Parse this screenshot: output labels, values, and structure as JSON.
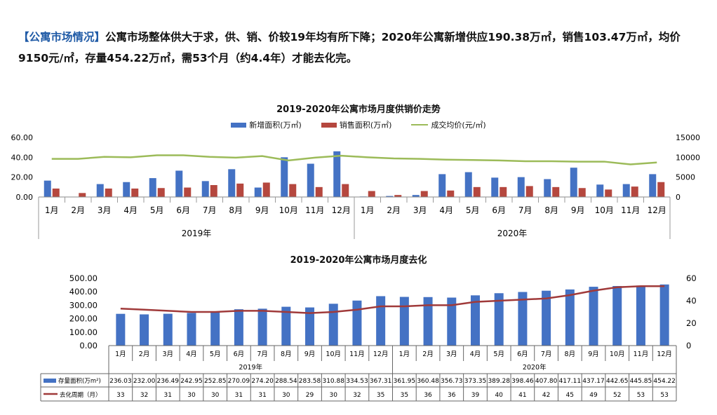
{
  "headline": {
    "tag": "【公寓市场情况】",
    "body": "公寓市场整体供大于求，供、销、价较19年均有所下降；2020年公寓新增供应190.38万㎡，销售103.47万㎡，均价9150元/㎡，存量454.22万㎡，需53个月（约4.4年）才能去化完。"
  },
  "colors": {
    "blue": "#4472c4",
    "red": "#b5473e",
    "green": "#9cbb59",
    "dark_red": "#a03a3a"
  },
  "chart_data": [
    {
      "type": "bar",
      "title": "2019-2020年公寓市场月度供销价走势",
      "categories": [
        "1月",
        "2月",
        "3月",
        "4月",
        "5月",
        "6月",
        "7月",
        "8月",
        "9月",
        "10月",
        "11月",
        "12月",
        "1月",
        "2月",
        "3月",
        "4月",
        "5月",
        "6月",
        "7月",
        "8月",
        "9月",
        "10月",
        "11月",
        "12月"
      ],
      "groups": [
        "2019年",
        "2020年"
      ],
      "y_left_ticks": [
        "0.00",
        "20.00",
        "40.00",
        "60.00"
      ],
      "y_left_lim": [
        0,
        60
      ],
      "y_right_ticks": [
        "0",
        "5000",
        "10000",
        "15000"
      ],
      "y_right_lim": [
        0,
        15000
      ],
      "legend_position": "top-center",
      "series": [
        {
          "name": "新增面积(万㎡)",
          "axis": "left",
          "values": [
            16.5,
            0.3,
            13,
            15,
            19,
            26.5,
            16,
            28,
            9.5,
            40,
            33.5,
            46,
            0.5,
            1,
            2,
            23,
            25,
            19.5,
            20,
            18,
            29.5,
            12.5,
            13,
            23
          ]
        },
        {
          "name": "销售面积(万㎡)",
          "axis": "left",
          "values": [
            8.5,
            4,
            8.5,
            8.5,
            9,
            9.5,
            12,
            13.5,
            14.5,
            13,
            10,
            13,
            6,
            2,
            6,
            6.5,
            10,
            10,
            11,
            10,
            9,
            7.5,
            10.5,
            15
          ]
        },
        {
          "name": "成交均价(元/㎡)",
          "axis": "right",
          "type": "line",
          "values": [
            9600,
            9600,
            10100,
            10000,
            10500,
            10500,
            10100,
            9900,
            10300,
            9200,
            9900,
            10400,
            10000,
            9700,
            9600,
            9400,
            9300,
            9200,
            9000,
            9000,
            8900,
            8900,
            8200,
            8700
          ]
        }
      ]
    },
    {
      "type": "bar",
      "title": "2019-2020年公寓市场月度去化",
      "categories": [
        "1月",
        "2月",
        "3月",
        "4月",
        "5月",
        "6月",
        "7月",
        "8月",
        "9月",
        "10月",
        "11月",
        "12月",
        "1月",
        "2月",
        "3月",
        "4月",
        "5月",
        "6月",
        "7月",
        "8月",
        "9月",
        "10月",
        "11月",
        "12月"
      ],
      "groups": [
        "2019年",
        "2020年"
      ],
      "y_left_ticks": [
        "0.00",
        "100.00",
        "200.00",
        "300.00",
        "400.00",
        "500.00"
      ],
      "y_left_lim": [
        0,
        500
      ],
      "y_right_ticks": [
        "0",
        "20",
        "40",
        "60"
      ],
      "y_right_lim": [
        0,
        60
      ],
      "series": [
        {
          "name": "存量面积(万m²)",
          "axis": "left",
          "values": [
            236.03,
            232.0,
            236.49,
            242.95,
            252.85,
            270.09,
            274.2,
            288.54,
            283.58,
            310.88,
            334.53,
            367.31,
            361.95,
            360.48,
            356.73,
            373.35,
            389.28,
            398.46,
            407.8,
            417.11,
            437.17,
            442.65,
            445.85,
            454.22
          ],
          "labels": [
            "236.03",
            "232.00",
            "236.49",
            "242.95",
            "252.85",
            "270.09",
            "274.20",
            "288.54",
            "283.58",
            "310.88",
            "334.53",
            "367.31",
            "361.95",
            "360.48",
            "356.73",
            "373.35",
            "389.28",
            "398.46",
            "407.80",
            "417.11",
            "437.17",
            "442.65",
            "445.85",
            "454.22"
          ]
        },
        {
          "name": "去化周期（月）",
          "axis": "right",
          "type": "line",
          "values": [
            33,
            32,
            31,
            30,
            30,
            31,
            31,
            30,
            29,
            30,
            32,
            35,
            35,
            36,
            36,
            39,
            40,
            41,
            42,
            45,
            49,
            52,
            53,
            53
          ],
          "labels": [
            "33",
            "32",
            "31",
            "30",
            "30",
            "31",
            "31",
            "30",
            "29",
            "30",
            "32",
            "35",
            "35",
            "36",
            "36",
            "39",
            "40",
            "41",
            "42",
            "45",
            "49",
            "52",
            "53",
            "53"
          ]
        }
      ]
    }
  ]
}
